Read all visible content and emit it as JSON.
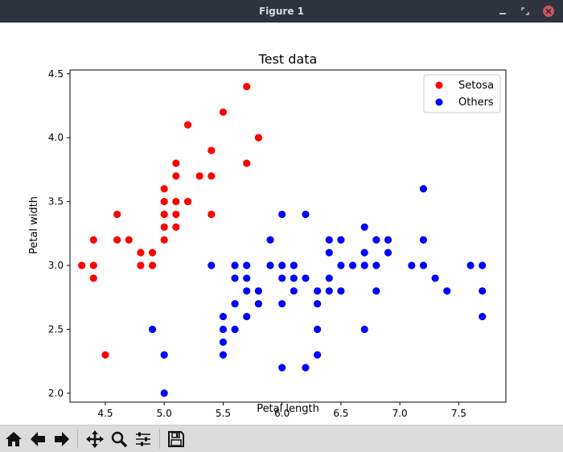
{
  "window": {
    "title": "Figure 1"
  },
  "toolbar": {
    "items": [
      "home-icon",
      "back-arrow-icon",
      "forward-arrow-icon",
      "pan-icon",
      "zoom-icon",
      "subplots-icon",
      "save-icon"
    ]
  },
  "colors": {
    "setosa": "#ff0000",
    "others": "#0000ff"
  },
  "chart_data": {
    "type": "scatter",
    "title": "Test data",
    "xlabel": "Petal length",
    "ylabel": "Petal width",
    "xlim": [
      4.2,
      7.9
    ],
    "ylim": [
      1.93,
      4.53
    ],
    "xticks": [
      "4.5",
      "5.0",
      "5.5",
      "6.0",
      "6.5",
      "7.0",
      "7.5"
    ],
    "yticks": [
      "2.0",
      "2.5",
      "3.0",
      "3.5",
      "4.0",
      "4.5"
    ],
    "legend": "top-right",
    "grid": false,
    "series": [
      {
        "name": "Setosa",
        "color": "#ff0000",
        "points": [
          [
            4.3,
            3.0
          ],
          [
            4.4,
            3.2
          ],
          [
            4.4,
            3.0
          ],
          [
            4.4,
            2.9
          ],
          [
            4.5,
            2.3
          ],
          [
            4.6,
            3.4
          ],
          [
            4.6,
            3.2
          ],
          [
            4.7,
            3.2
          ],
          [
            4.8,
            3.1
          ],
          [
            4.8,
            3.0
          ],
          [
            4.9,
            3.1
          ],
          [
            4.9,
            3.0
          ],
          [
            5.0,
            3.6
          ],
          [
            5.0,
            3.5
          ],
          [
            5.0,
            3.4
          ],
          [
            5.0,
            3.3
          ],
          [
            5.0,
            3.2
          ],
          [
            5.1,
            3.8
          ],
          [
            5.1,
            3.7
          ],
          [
            5.1,
            3.5
          ],
          [
            5.1,
            3.4
          ],
          [
            5.1,
            3.3
          ],
          [
            5.2,
            4.1
          ],
          [
            5.2,
            3.5
          ],
          [
            5.3,
            3.7
          ],
          [
            5.4,
            3.9
          ],
          [
            5.4,
            3.7
          ],
          [
            5.4,
            3.4
          ],
          [
            5.5,
            4.2
          ],
          [
            5.7,
            4.4
          ],
          [
            5.7,
            3.8
          ],
          [
            5.8,
            4.0
          ]
        ]
      },
      {
        "name": "Others",
        "color": "#0000ff",
        "points": [
          [
            4.9,
            2.5
          ],
          [
            5.0,
            2.3
          ],
          [
            5.0,
            2.0
          ],
          [
            5.4,
            3.0
          ],
          [
            5.5,
            2.6
          ],
          [
            5.5,
            2.5
          ],
          [
            5.5,
            2.4
          ],
          [
            5.5,
            2.3
          ],
          [
            5.6,
            3.0
          ],
          [
            5.6,
            2.9
          ],
          [
            5.6,
            2.7
          ],
          [
            5.6,
            2.5
          ],
          [
            5.7,
            3.0
          ],
          [
            5.7,
            2.9
          ],
          [
            5.7,
            2.8
          ],
          [
            5.7,
            2.6
          ],
          [
            5.8,
            2.8
          ],
          [
            5.8,
            2.7
          ],
          [
            5.9,
            3.2
          ],
          [
            5.9,
            3.0
          ],
          [
            6.0,
            3.4
          ],
          [
            6.0,
            3.0
          ],
          [
            6.0,
            2.9
          ],
          [
            6.0,
            2.7
          ],
          [
            6.0,
            2.2
          ],
          [
            6.1,
            3.0
          ],
          [
            6.1,
            2.9
          ],
          [
            6.1,
            2.8
          ],
          [
            6.2,
            3.4
          ],
          [
            6.2,
            2.9
          ],
          [
            6.2,
            2.2
          ],
          [
            6.3,
            2.8
          ],
          [
            6.3,
            2.7
          ],
          [
            6.3,
            2.5
          ],
          [
            6.3,
            2.3
          ],
          [
            6.4,
            3.2
          ],
          [
            6.4,
            3.1
          ],
          [
            6.4,
            2.9
          ],
          [
            6.4,
            2.8
          ],
          [
            6.5,
            3.2
          ],
          [
            6.5,
            3.0
          ],
          [
            6.5,
            2.8
          ],
          [
            6.6,
            3.0
          ],
          [
            6.7,
            3.3
          ],
          [
            6.7,
            3.1
          ],
          [
            6.7,
            3.0
          ],
          [
            6.7,
            2.5
          ],
          [
            6.8,
            3.2
          ],
          [
            6.8,
            3.0
          ],
          [
            6.8,
            2.8
          ],
          [
            6.9,
            3.2
          ],
          [
            6.9,
            3.1
          ],
          [
            7.1,
            3.0
          ],
          [
            7.2,
            3.6
          ],
          [
            7.2,
            3.2
          ],
          [
            7.2,
            3.0
          ],
          [
            7.3,
            2.9
          ],
          [
            7.4,
            2.8
          ],
          [
            7.6,
            3.0
          ],
          [
            7.7,
            3.0
          ],
          [
            7.7,
            2.8
          ],
          [
            7.7,
            2.6
          ]
        ]
      }
    ]
  }
}
